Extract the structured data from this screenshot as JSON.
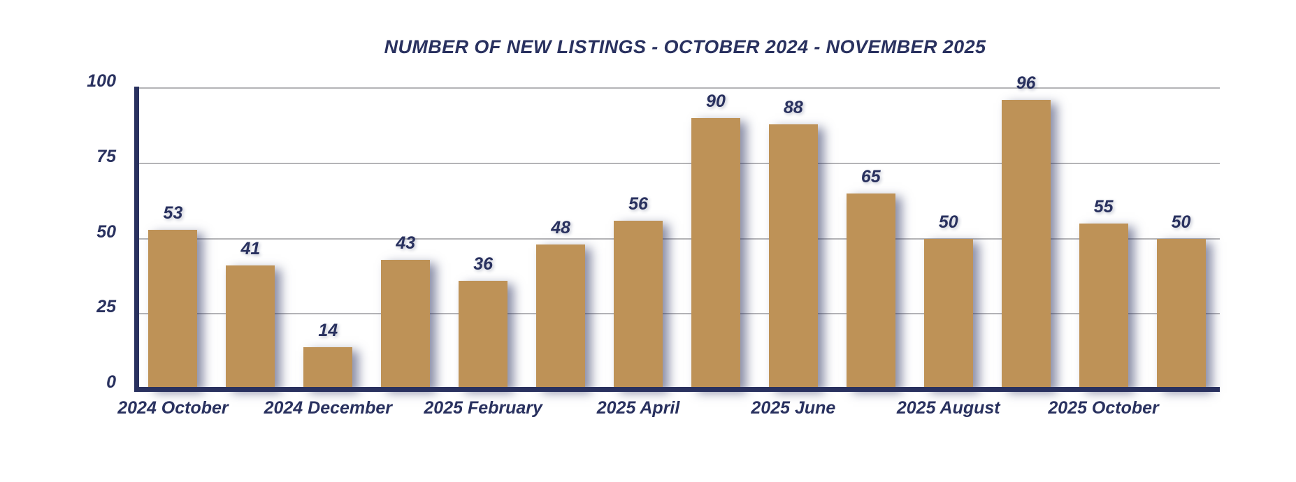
{
  "chart_data": {
    "type": "bar",
    "title": "NUMBER OF NEW LISTINGS - OCTOBER 2024 - NOVEMBER 2025",
    "values": [
      53,
      41,
      14,
      43,
      36,
      48,
      56,
      90,
      88,
      65,
      50,
      96,
      55,
      50
    ],
    "x_tick_labels": [
      "2024 October",
      "2024 December",
      "2025 February",
      "2025 April",
      "2025 June",
      "2025 August",
      "2025 October"
    ],
    "x_tick_positions": [
      0,
      2,
      4,
      6,
      8,
      10,
      12
    ],
    "y_ticks": [
      0,
      25,
      50,
      75,
      100
    ],
    "ylim": [
      0,
      100
    ],
    "grid": true,
    "legend": "none",
    "bar_color": "#BE9257",
    "axis_color": "#29315F",
    "gridline_color": "#B4B4B7",
    "label_color": "#29315F",
    "background_color": "#FFFFFF"
  }
}
